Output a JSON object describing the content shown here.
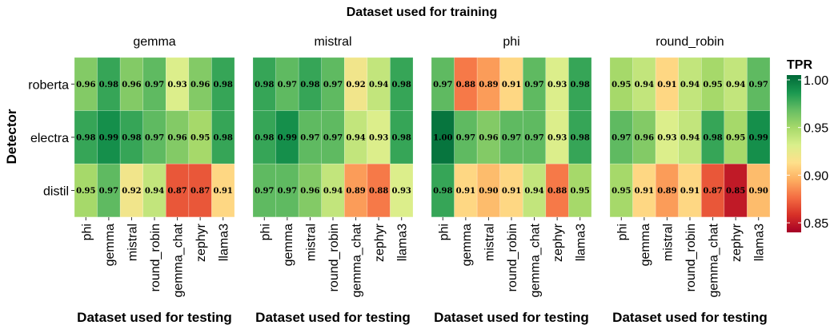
{
  "chart_data": {
    "type": "heatmap",
    "title": "Dataset used for training",
    "xlabel": "Dataset used for testing",
    "ylabel": "Detector",
    "rows": [
      "roberta",
      "electra",
      "distil"
    ],
    "columns": [
      "phi",
      "gemma",
      "mistral",
      "round_robin",
      "gemma_chat",
      "zephyr",
      "llama3"
    ],
    "legend": {
      "title": "TPR",
      "range": [
        0.84,
        1.005
      ],
      "ticks": [
        1.0,
        0.95,
        0.9,
        0.85
      ],
      "tick_labels": [
        "1.00",
        "0.95",
        "0.90",
        "0.85"
      ],
      "placement": "right",
      "colors": [
        "#a50026",
        "#d73027",
        "#f46d43",
        "#fdae61",
        "#fee08b",
        "#d9ef8b",
        "#a6d96a",
        "#66bd63",
        "#1a9850",
        "#006837"
      ]
    },
    "panels": [
      {
        "name": "gemma",
        "values": [
          [
            0.96,
            0.98,
            0.96,
            0.97,
            0.93,
            0.96,
            0.98
          ],
          [
            0.98,
            0.99,
            0.98,
            0.97,
            0.96,
            0.95,
            0.98
          ],
          [
            0.95,
            0.97,
            0.92,
            0.94,
            0.87,
            0.87,
            0.91
          ]
        ],
        "labels": [
          [
            "0.96",
            "0.98",
            "0.96",
            "0.97",
            "0.93",
            "0.96",
            "0.98"
          ],
          [
            "0.98",
            "0.99",
            "0.98",
            "0.97",
            "0.96",
            "0.95",
            "0.98"
          ],
          [
            "0.95",
            "0.97",
            "0.92",
            "0.94",
            "0.87",
            "0.87",
            "0.91"
          ]
        ]
      },
      {
        "name": "mistral",
        "values": [
          [
            0.98,
            0.97,
            0.98,
            0.97,
            0.92,
            0.94,
            0.98
          ],
          [
            0.98,
            0.99,
            0.97,
            0.97,
            0.94,
            0.93,
            0.98
          ],
          [
            0.97,
            0.97,
            0.96,
            0.94,
            0.89,
            0.88,
            0.93
          ]
        ],
        "labels": [
          [
            "0.98",
            "0.97",
            "0.98",
            "0.97",
            "0.92",
            "0.94",
            "0.98"
          ],
          [
            "0.98",
            "0.99",
            "0.97",
            "0.97",
            "0.94",
            "0.93",
            "0.98"
          ],
          [
            "0.97",
            "0.97",
            "0.96",
            "0.94",
            "0.89",
            "0.88",
            "0.93"
          ]
        ]
      },
      {
        "name": "phi",
        "values": [
          [
            0.97,
            0.88,
            0.89,
            0.91,
            0.97,
            0.93,
            0.98
          ],
          [
            1.0,
            0.97,
            0.96,
            0.97,
            0.97,
            0.93,
            0.98
          ],
          [
            0.98,
            0.91,
            0.9,
            0.91,
            0.94,
            0.88,
            0.95
          ]
        ],
        "labels": [
          [
            "0.97",
            "0.88",
            "0.89",
            "0.91",
            "0.97",
            "0.93",
            "0.98"
          ],
          [
            "1.00",
            "0.97",
            "0.96",
            "0.97",
            "0.97",
            "0.93",
            "0.98"
          ],
          [
            "0.98",
            "0.91",
            "0.90",
            "0.91",
            "0.94",
            "0.88",
            "0.95"
          ]
        ]
      },
      {
        "name": "round_robin",
        "values": [
          [
            0.95,
            0.94,
            0.91,
            0.94,
            0.95,
            0.94,
            0.97
          ],
          [
            0.97,
            0.96,
            0.93,
            0.94,
            0.98,
            0.95,
            0.99
          ],
          [
            0.95,
            0.91,
            0.89,
            0.91,
            0.87,
            0.85,
            0.9
          ]
        ],
        "labels": [
          [
            "0.95",
            "0.94",
            "0.91",
            "0.94",
            "0.95",
            "0.94",
            "0.97"
          ],
          [
            "0.97",
            "0.96",
            "0.93",
            "0.94",
            "0.98",
            "0.95",
            "0.99"
          ],
          [
            "0.95",
            "0.91",
            "0.89",
            "0.91",
            "0.87",
            "0.85",
            "0.90"
          ]
        ]
      }
    ]
  }
}
